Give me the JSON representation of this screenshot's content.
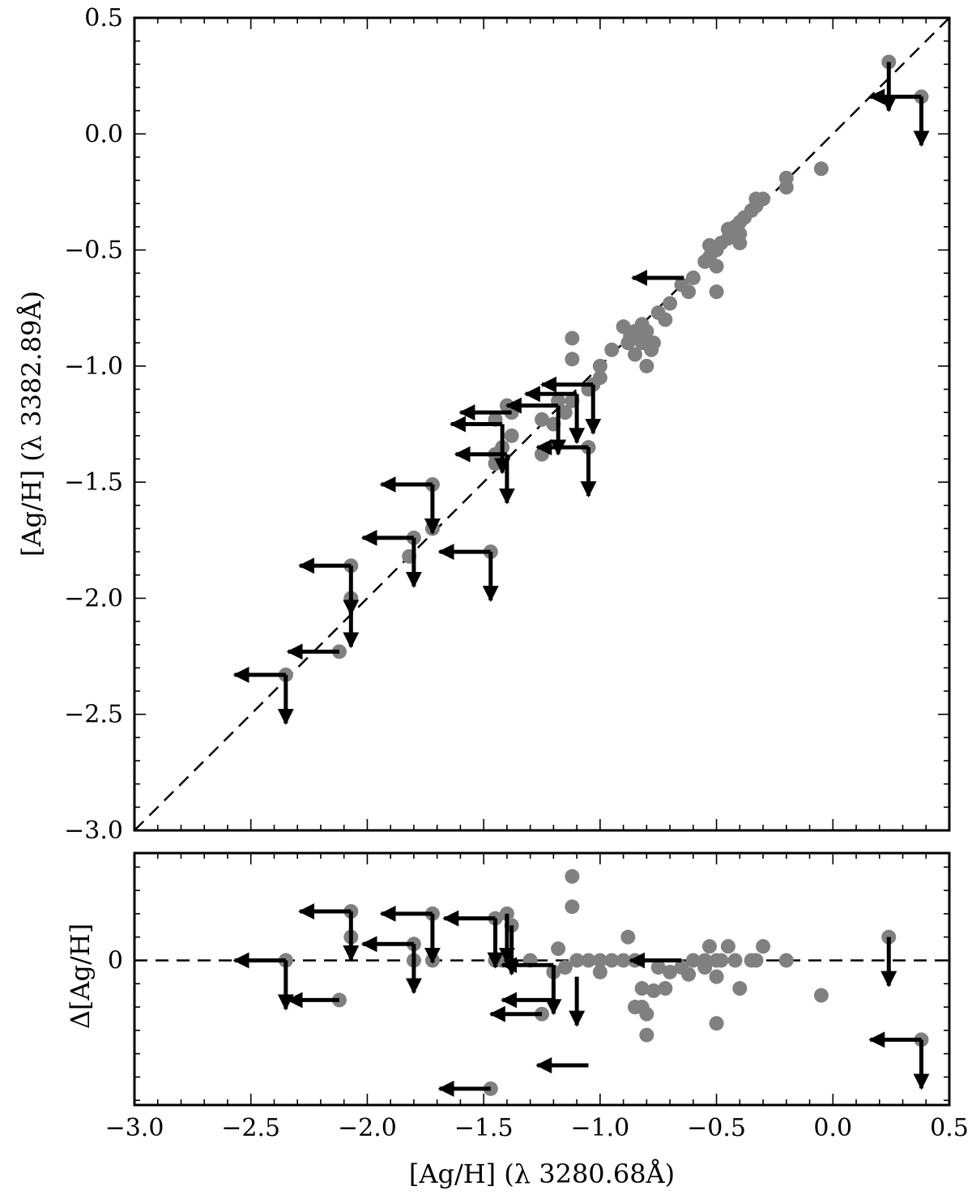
{
  "chart_data": [
    {
      "type": "scatter",
      "panel": "main",
      "xlim": [
        -3.0,
        0.5
      ],
      "ylim": [
        -3.0,
        0.5
      ],
      "x_ticks": [
        "−3.0",
        "−2.5",
        "−2.0",
        "−1.5",
        "−1.0",
        "−0.5",
        "0.0",
        "0.5"
      ],
      "x_tick_values": [
        -3.0,
        -2.5,
        -2.0,
        -1.5,
        -1.0,
        -0.5,
        0.0,
        0.5
      ],
      "y_ticks": [
        "−3.0",
        "−2.5",
        "−2.0",
        "−1.5",
        "−1.0",
        "−0.5",
        "0.0",
        "0.5"
      ],
      "y_tick_values": [
        -3.0,
        -2.5,
        -2.0,
        -1.5,
        -1.0,
        -0.5,
        0.0,
        0.5
      ],
      "xlabel": "",
      "ylabel": "[Ag/H] (λ 3382.89Å)",
      "reference_line": {
        "style": "dashed",
        "x": [
          -3.0,
          0.5
        ],
        "y": [
          -3.0,
          0.5
        ]
      },
      "point_color": "#808080",
      "limit_color": "#000000",
      "points": [
        [
          0.24,
          0.31
        ],
        [
          0.38,
          0.16
        ],
        [
          -0.05,
          -0.15
        ],
        [
          -0.2,
          -0.19
        ],
        [
          -0.2,
          -0.23
        ],
        [
          -0.3,
          -0.28
        ],
        [
          -0.33,
          -0.28
        ],
        [
          -0.33,
          -0.31
        ],
        [
          -0.35,
          -0.33
        ],
        [
          -0.38,
          -0.36
        ],
        [
          -0.4,
          -0.38
        ],
        [
          -0.4,
          -0.43
        ],
        [
          -0.42,
          -0.4
        ],
        [
          -0.45,
          -0.41
        ],
        [
          -0.45,
          -0.45
        ],
        [
          -0.4,
          -0.47
        ],
        [
          -0.48,
          -0.47
        ],
        [
          -0.5,
          -0.5
        ],
        [
          -0.53,
          -0.48
        ],
        [
          -0.53,
          -0.53
        ],
        [
          -0.55,
          -0.55
        ],
        [
          -0.5,
          -0.57
        ],
        [
          -0.5,
          -0.68
        ],
        [
          -0.6,
          -0.62
        ],
        [
          -0.62,
          -0.68
        ],
        [
          -0.65,
          -0.65
        ],
        [
          -0.7,
          -0.73
        ],
        [
          -0.72,
          -0.8
        ],
        [
          -0.75,
          -0.77
        ],
        [
          -0.77,
          -0.9
        ],
        [
          -0.78,
          -0.93
        ],
        [
          -0.8,
          -0.85
        ],
        [
          -0.8,
          -1.0
        ],
        [
          -0.82,
          -0.82
        ],
        [
          -0.82,
          -0.9
        ],
        [
          -0.85,
          -0.85
        ],
        [
          -0.85,
          -0.95
        ],
        [
          -0.87,
          -0.87
        ],
        [
          -0.88,
          -0.9
        ],
        [
          -0.9,
          -0.83
        ],
        [
          -0.95,
          -0.93
        ],
        [
          -1.0,
          -1.0
        ],
        [
          -1.0,
          -1.05
        ],
        [
          -1.03,
          -1.08
        ],
        [
          -1.05,
          -1.1
        ],
        [
          -1.05,
          -1.35
        ],
        [
          -1.12,
          -0.88
        ],
        [
          -1.12,
          -0.97
        ],
        [
          -1.12,
          -1.15
        ],
        [
          -1.15,
          -1.2
        ],
        [
          -1.18,
          -1.15
        ],
        [
          -1.2,
          -1.25
        ],
        [
          -1.25,
          -1.38
        ],
        [
          -1.25,
          -1.23
        ],
        [
          -1.38,
          -1.3
        ],
        [
          -1.38,
          -1.2
        ],
        [
          -1.4,
          -1.17
        ],
        [
          -1.42,
          -1.35
        ],
        [
          -1.45,
          -1.38
        ],
        [
          -1.45,
          -1.42
        ],
        [
          -1.45,
          -1.23
        ],
        [
          -1.47,
          -1.8
        ],
        [
          -1.72,
          -1.51
        ],
        [
          -1.72,
          -1.7
        ],
        [
          -1.8,
          -1.74
        ],
        [
          -1.82,
          -1.82
        ],
        [
          -2.07,
          -1.86
        ],
        [
          -2.07,
          -2.0
        ],
        [
          -2.12,
          -2.23
        ],
        [
          -2.35,
          -2.33
        ]
      ],
      "upper_limits": [
        {
          "x": 0.24,
          "y": 0.31,
          "dir": "down"
        },
        {
          "x": 0.38,
          "y": 0.16,
          "dir": "left-down"
        },
        {
          "x": -0.64,
          "y": -0.62,
          "dir": "left"
        },
        {
          "x": -1.03,
          "y": -1.08,
          "dir": "left-down"
        },
        {
          "x": -1.1,
          "y": -1.12,
          "dir": "left-down"
        },
        {
          "x": -1.18,
          "y": -1.17,
          "dir": "left-down"
        },
        {
          "x": -1.05,
          "y": -1.35,
          "dir": "left-down"
        },
        {
          "x": -1.38,
          "y": -1.2,
          "dir": "left"
        },
        {
          "x": -1.42,
          "y": -1.25,
          "dir": "left-down"
        },
        {
          "x": -1.4,
          "y": -1.38,
          "dir": "left-down"
        },
        {
          "x": -1.72,
          "y": -1.51,
          "dir": "left-down"
        },
        {
          "x": -1.8,
          "y": -1.74,
          "dir": "left-down"
        },
        {
          "x": -1.47,
          "y": -1.8,
          "dir": "left-down"
        },
        {
          "x": -2.07,
          "y": -1.86,
          "dir": "left-down"
        },
        {
          "x": -2.07,
          "y": -2.0,
          "dir": "down"
        },
        {
          "x": -2.12,
          "y": -2.23,
          "dir": "left"
        },
        {
          "x": -2.35,
          "y": -2.33,
          "dir": "left-down"
        }
      ]
    },
    {
      "type": "scatter",
      "panel": "residual",
      "xlim": [
        -3.0,
        0.5
      ],
      "ylim": [
        -0.62,
        0.46
      ],
      "x_ticks": [
        "−3.0",
        "−2.5",
        "−2.0",
        "−1.5",
        "−1.0",
        "−0.5",
        "0.0",
        "0.5"
      ],
      "x_tick_values": [
        -3.0,
        -2.5,
        -2.0,
        -1.5,
        -1.0,
        -0.5,
        0.0,
        0.5
      ],
      "y_ticks": [
        "0"
      ],
      "y_tick_values": [
        0
      ],
      "xlabel": "[Ag/H] (λ 3280.68Å)",
      "ylabel": "Δ[Ag/H]",
      "reference_line": {
        "style": "dashed",
        "y": 0
      },
      "point_color": "#808080",
      "limit_color": "#000000",
      "points": [
        [
          0.24,
          0.1
        ],
        [
          0.38,
          -0.34
        ],
        [
          -0.05,
          -0.15
        ],
        [
          -0.2,
          0.0
        ],
        [
          -0.3,
          0.06
        ],
        [
          -0.33,
          0.0
        ],
        [
          -0.35,
          0.0
        ],
        [
          -0.4,
          -0.12
        ],
        [
          -0.42,
          0.0
        ],
        [
          -0.45,
          0.06
        ],
        [
          -0.48,
          0.0
        ],
        [
          -0.5,
          0.0
        ],
        [
          -0.5,
          -0.07
        ],
        [
          -0.5,
          -0.27
        ],
        [
          -0.53,
          0.06
        ],
        [
          -0.55,
          0.0
        ],
        [
          -0.55,
          -0.03
        ],
        [
          -0.6,
          0.0
        ],
        [
          -0.62,
          -0.06
        ],
        [
          -0.65,
          -0.03
        ],
        [
          -0.7,
          -0.05
        ],
        [
          -0.72,
          -0.12
        ],
        [
          -0.75,
          -0.03
        ],
        [
          -0.77,
          -0.13
        ],
        [
          -0.8,
          -0.32
        ],
        [
          -0.8,
          -0.23
        ],
        [
          -0.82,
          -0.12
        ],
        [
          -0.82,
          -0.2
        ],
        [
          -0.85,
          -0.2
        ],
        [
          -0.85,
          0.0
        ],
        [
          -0.88,
          0.1
        ],
        [
          -0.9,
          0.0
        ],
        [
          -0.95,
          0.0
        ],
        [
          -1.0,
          0.0
        ],
        [
          -1.0,
          -0.05
        ],
        [
          -1.05,
          0.0
        ],
        [
          -1.1,
          0.0
        ],
        [
          -1.12,
          0.36
        ],
        [
          -1.12,
          0.23
        ],
        [
          -1.15,
          -0.03
        ],
        [
          -1.18,
          0.05
        ],
        [
          -1.2,
          -0.05
        ],
        [
          -1.25,
          -0.23
        ],
        [
          -1.3,
          0.0
        ],
        [
          -1.38,
          0.15
        ],
        [
          -1.4,
          0.2
        ],
        [
          -1.42,
          0.0
        ],
        [
          -1.45,
          0.18
        ],
        [
          -1.45,
          0.0
        ],
        [
          -1.47,
          -0.55
        ],
        [
          -1.72,
          0.0
        ],
        [
          -1.72,
          0.2
        ],
        [
          -1.8,
          0.0
        ],
        [
          -1.8,
          0.07
        ],
        [
          -2.07,
          0.1
        ],
        [
          -2.07,
          0.21
        ],
        [
          -2.12,
          -0.17
        ],
        [
          -2.35,
          0.0
        ]
      ],
      "upper_limits": [
        {
          "x": 0.24,
          "y": 0.1,
          "dir": "down"
        },
        {
          "x": 0.38,
          "y": -0.34,
          "dir": "left-down"
        },
        {
          "x": -0.65,
          "y": 0.0,
          "dir": "left"
        },
        {
          "x": -1.05,
          "y": -0.45,
          "dir": "left"
        },
        {
          "x": -1.1,
          "y": -0.07,
          "dir": "down"
        },
        {
          "x": -1.2,
          "y": -0.02,
          "dir": "left-down"
        },
        {
          "x": -1.2,
          "y": -0.17,
          "dir": "left"
        },
        {
          "x": -1.25,
          "y": -0.23,
          "dir": "left"
        },
        {
          "x": -1.38,
          "y": 0.15,
          "dir": "down"
        },
        {
          "x": -1.4,
          "y": 0.2,
          "dir": "down"
        },
        {
          "x": -1.45,
          "y": 0.18,
          "dir": "left-down"
        },
        {
          "x": -1.47,
          "y": -0.55,
          "dir": "left"
        },
        {
          "x": -1.72,
          "y": 0.2,
          "dir": "left-down"
        },
        {
          "x": -1.8,
          "y": 0.07,
          "dir": "left-down"
        },
        {
          "x": -2.07,
          "y": 0.21,
          "dir": "left-down"
        },
        {
          "x": -2.12,
          "y": -0.17,
          "dir": "left"
        },
        {
          "x": -2.35,
          "y": 0.0,
          "dir": "left-down"
        }
      ]
    }
  ]
}
